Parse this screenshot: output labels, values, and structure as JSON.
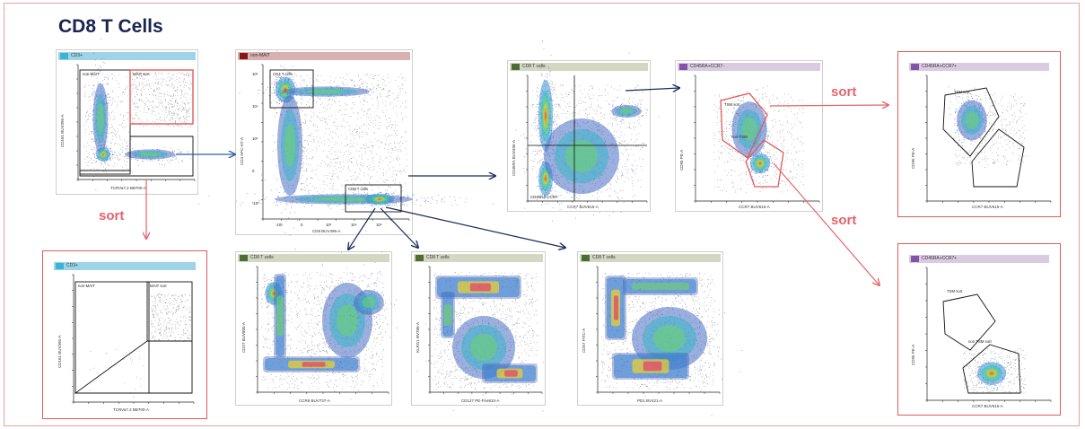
{
  "title": "CD8 T Cells",
  "sort_label": "sort",
  "colors": {
    "red": "#e4646b",
    "navy": "#1b2a5a",
    "blue_arrow": "#2f5f9e",
    "title": "#1a2450"
  },
  "panels": {
    "p1": {
      "header": "CD3+",
      "header_color": "#9fd4e8",
      "swatch": "#3bb5d3",
      "xlabel": "TCRVa7.2 BB700-A",
      "ylabel": "CD161 BUV395-A",
      "gate_a": "non-MAIT",
      "gate_b": "MAIT sort"
    },
    "p2": {
      "header": "non-MAIT",
      "header_color": "#d9b1b3",
      "swatch": "#8b1414",
      "xlabel": "CD8 BUV496-A",
      "ylabel": "CD4 APC-H7-A",
      "gate_a": "CD4 T cells",
      "gate_b": "CD8 T cells",
      "xticks": [
        "-10³",
        "0",
        "10³",
        "10⁴",
        "10⁵"
      ],
      "yticks": [
        "10⁵",
        "10⁴",
        "10³",
        "0",
        "-10³"
      ]
    },
    "p3": {
      "header": "CD8 T cells",
      "header_color": "#d3d8c3",
      "swatch": "#4e6d33",
      "xlabel": "CCR7 BUV615-A",
      "ylabel": "CD45RA BUV496-A",
      "quad_label": "CD45RA-CCR7-"
    },
    "p4": {
      "header": "CD45RA+CCR7-",
      "header_color": "#dacbe3",
      "swatch": "#8453a8",
      "xlabel": "CCR7 BUV615-A",
      "ylabel": "CD95 PE-A",
      "gate_a": "TSM sort",
      "gate_b": "non-TSM"
    },
    "p5": {
      "header": "CD45RA+CCR7+",
      "header_color": "#dacbe3",
      "swatch": "#8453a8",
      "xlabel": "CCR7 BUV615-A",
      "ylabel": "CD95 PE-A",
      "gate_a": "TSM sort"
    },
    "p6": {
      "header": "CD45RA+CCR7+",
      "header_color": "#dacbe3",
      "swatch": "#8453a8",
      "xlabel": "CCR7 BUV615-A",
      "ylabel": "CD95 PE-A",
      "gate_a": "TSM sort",
      "gate_b": "non TSM sort"
    },
    "p7": {
      "header": "CD3+",
      "header_color": "#9fd4e8",
      "swatch": "#3bb5d3",
      "xlabel": "TCRVa7.2 BB700-A",
      "ylabel": "CD161 BUV395-A",
      "gate_a": "non-MAIT",
      "gate_b": "MAIT sort"
    },
    "p8": {
      "header": "CD8 T cells",
      "header_color": "#d3d8c3",
      "swatch": "#4e6d33",
      "xlabel": "CCR6 BUV737-A",
      "ylabel": "CD27 BUV805-A"
    },
    "p9": {
      "header": "CD8 T cells",
      "header_color": "#d3d8c3",
      "swatch": "#4e6d33",
      "xlabel": "CD127 PE-Fire810-A",
      "ylabel": "KLRG1 BV786-A"
    },
    "p10": {
      "header": "CD8 T cells",
      "header_color": "#d3d8c3",
      "swatch": "#4e6d33",
      "xlabel": "PD1 BV421-A",
      "ylabel": "CD57 FITC-A"
    }
  }
}
